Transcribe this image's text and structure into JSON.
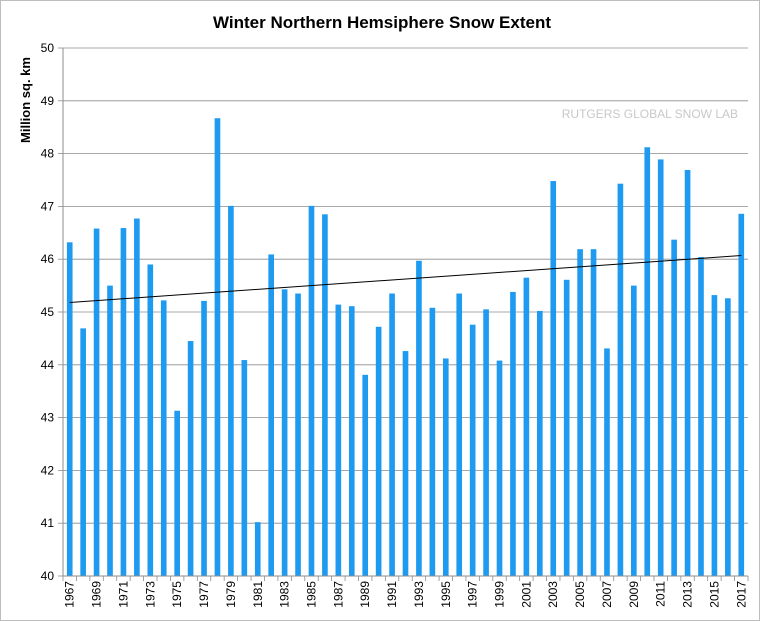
{
  "chart_data": {
    "type": "bar",
    "title": "Winter Northern Hemsiphere Snow Extent",
    "ylabel": "Million sq. km",
    "xlabel": "",
    "annotation": "RUTGERS GLOBAL SNOW LAB",
    "ylim": [
      40,
      50
    ],
    "yticks": [
      40,
      41,
      42,
      43,
      44,
      45,
      46,
      47,
      48,
      49,
      50
    ],
    "grid": true,
    "bar_color": "#1e9bf0",
    "trendline": {
      "color": "#000000",
      "start_value": 45.18,
      "end_value": 46.07
    },
    "categories": [
      1967,
      1968,
      1969,
      1970,
      1971,
      1972,
      1973,
      1974,
      1975,
      1976,
      1977,
      1978,
      1979,
      1980,
      1981,
      1982,
      1983,
      1984,
      1985,
      1986,
      1987,
      1988,
      1989,
      1990,
      1991,
      1992,
      1993,
      1994,
      1995,
      1996,
      1997,
      1998,
      1999,
      2000,
      2001,
      2002,
      2003,
      2004,
      2005,
      2006,
      2007,
      2008,
      2009,
      2010,
      2011,
      2012,
      2013,
      2014,
      2015,
      2016,
      2017
    ],
    "tick_labels": [
      "1967",
      "1969",
      "1971",
      "1973",
      "1975",
      "1977",
      "1979",
      "1981",
      "1983",
      "1985",
      "1987",
      "1989",
      "1991",
      "1993",
      "1995",
      "1997",
      "1999",
      "2001",
      "2003",
      "2005",
      "2007",
      "2009",
      "2011",
      "2013",
      "2015",
      "2017"
    ],
    "values": [
      46.32,
      44.69,
      46.58,
      45.5,
      46.59,
      46.77,
      45.9,
      45.22,
      43.13,
      44.45,
      45.21,
      48.67,
      47.01,
      44.09,
      41.02,
      46.09,
      45.43,
      45.35,
      47.01,
      46.85,
      45.14,
      45.11,
      43.81,
      44.72,
      45.35,
      44.26,
      45.97,
      45.08,
      44.12,
      45.35,
      44.76,
      45.05,
      44.08,
      45.38,
      45.65,
      45.02,
      47.48,
      45.61,
      46.19,
      46.19,
      44.31,
      47.43,
      45.5,
      48.12,
      47.89,
      46.37,
      47.69,
      46.04,
      45.32,
      45.26,
      46.86
    ]
  }
}
